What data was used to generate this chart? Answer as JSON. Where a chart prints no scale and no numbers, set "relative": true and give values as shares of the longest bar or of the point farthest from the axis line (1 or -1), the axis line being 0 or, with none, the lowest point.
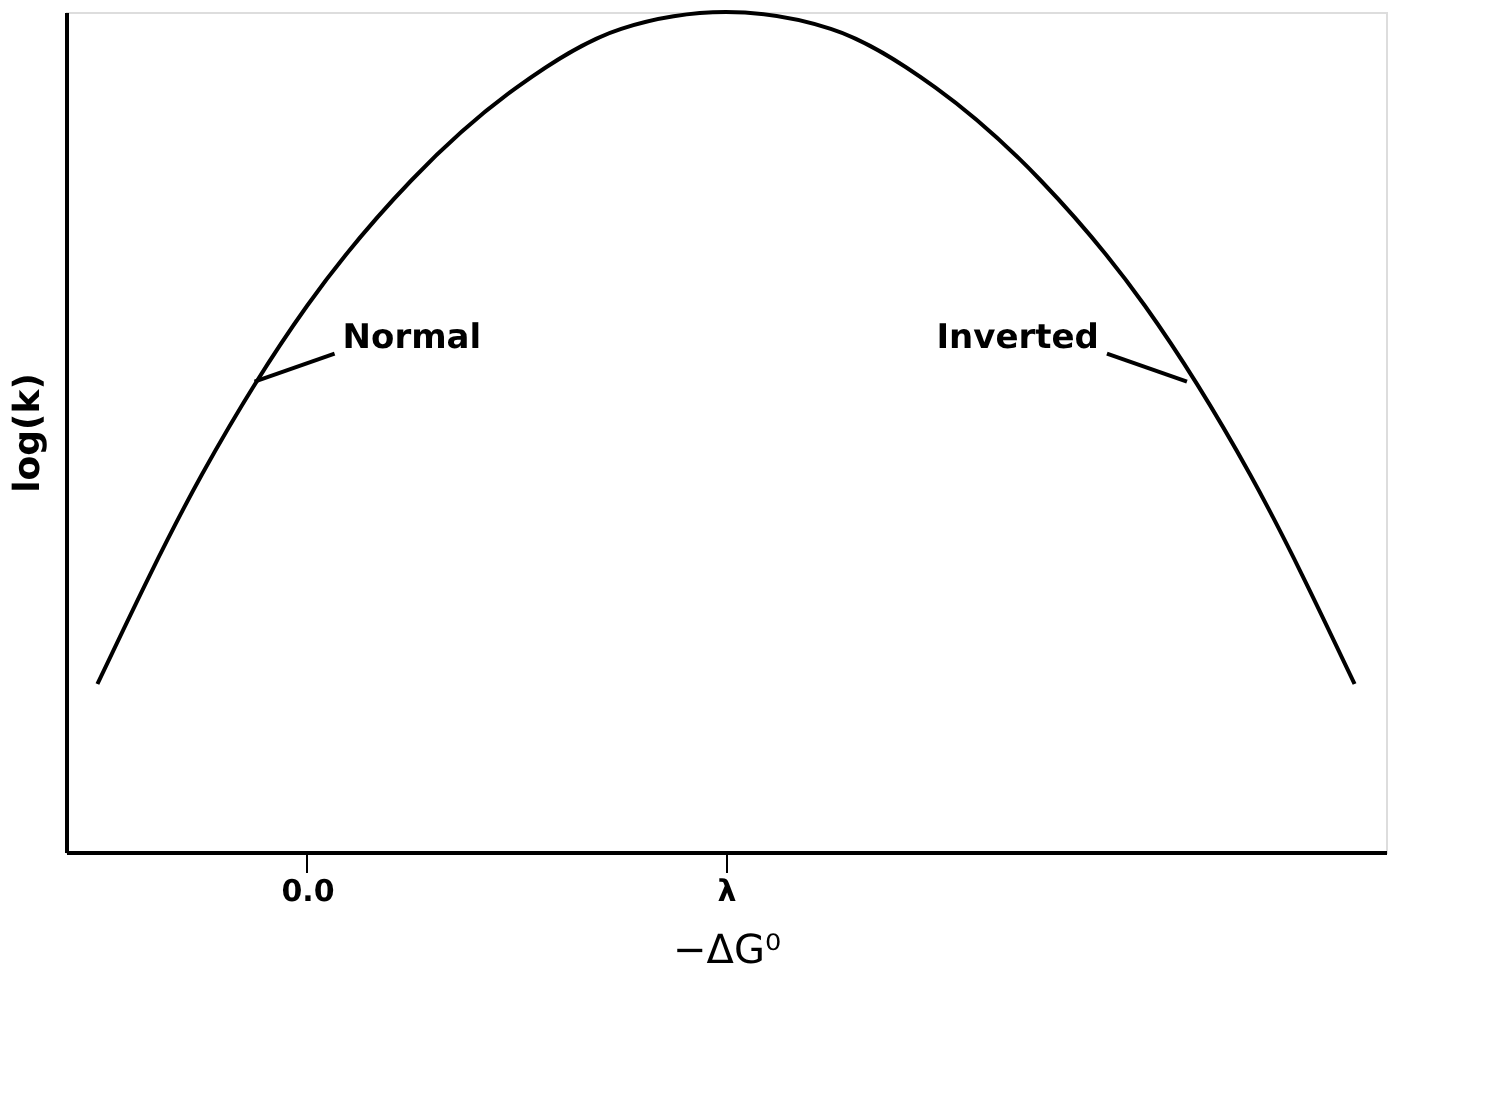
{
  "chart_data": {
    "type": "line",
    "relative": true,
    "xlabel": "−ΔG⁰",
    "ylabel": "log(k)",
    "categories": [
      null,
      null,
      "0.0",
      null,
      null,
      null,
      "λ",
      null,
      null,
      null,
      null,
      null,
      null
    ],
    "series": [
      {
        "color": "#000000",
        "values": [
          0.2,
          0.45,
          0.65,
          0.8,
          0.91,
          0.98,
          1,
          0.98,
          0.91,
          0.8,
          0.65,
          0.45,
          0.2
        ]
      }
    ],
    "annotations": [
      "Normal",
      "Inverted"
    ],
    "grid": false,
    "marker": "none",
    "line_style": "solid"
  }
}
